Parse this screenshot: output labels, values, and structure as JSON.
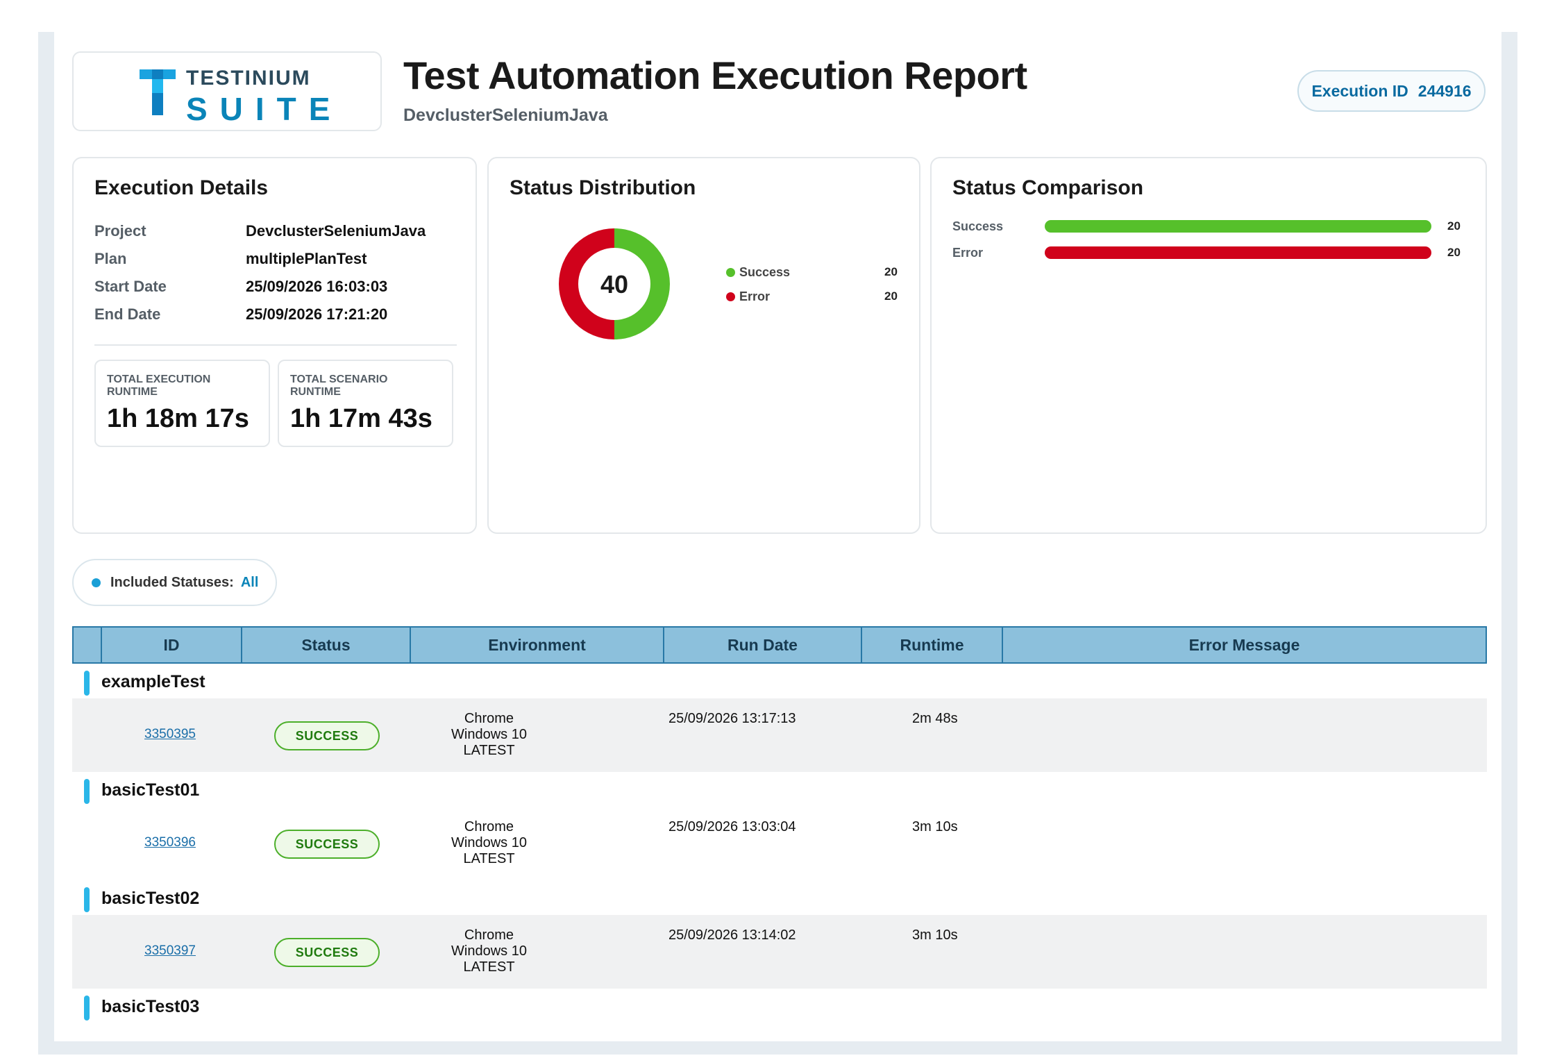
{
  "header": {
    "logo_line1": "TESTINIUM",
    "logo_line2": "SUITE",
    "title": "Test Automation Execution Report",
    "subtitle": "DevclusterSeleniumJava",
    "execution_id_label": "Execution ID",
    "execution_id_value": "244916"
  },
  "execution_details": {
    "title": "Execution Details",
    "rows": [
      {
        "label": "Project",
        "value": "DevclusterSeleniumJava"
      },
      {
        "label": "Plan",
        "value": "multiplePlanTest"
      },
      {
        "label": "Start Date",
        "value": "25/09/2026 16:03:03"
      },
      {
        "label": "End Date",
        "value": "25/09/2026 17:21:20"
      }
    ],
    "total_execution_label": "TOTAL EXECUTION RUNTIME",
    "total_execution_value": "1h 18m 17s",
    "total_scenario_label": "TOTAL SCENARIO RUNTIME",
    "total_scenario_value": "1h 17m 43s"
  },
  "status_distribution": {
    "title": "Status Distribution",
    "total": "40",
    "legend": [
      {
        "label": "Success",
        "value": "20",
        "color": "#56c02b"
      },
      {
        "label": "Error",
        "value": "20",
        "color": "#d0021b"
      }
    ]
  },
  "status_comparison": {
    "title": "Status Comparison",
    "bars": [
      {
        "label": "Success",
        "value": "20",
        "fraction": 1.0,
        "color": "#56c02b"
      },
      {
        "label": "Error",
        "value": "20",
        "fraction": 1.0,
        "color": "#d0021b"
      }
    ]
  },
  "filter": {
    "label": "Included Statuses:",
    "value": "All"
  },
  "table": {
    "columns": [
      "",
      "ID",
      "Status",
      "Environment",
      "Run Date",
      "Runtime",
      "Error Message"
    ],
    "groups": [
      {
        "name": "exampleTest",
        "id": "3350395",
        "status": "SUCCESS",
        "env_browser": "Chrome",
        "env_os": "Windows 10",
        "env_version": "LATEST",
        "run_date": "25/09/2026 13:17:13",
        "runtime": "2m 48s",
        "error": ""
      },
      {
        "name": "basicTest01",
        "id": "3350396",
        "status": "SUCCESS",
        "env_browser": "Chrome",
        "env_os": "Windows 10",
        "env_version": "LATEST",
        "run_date": "25/09/2026 13:03:04",
        "runtime": "3m 10s",
        "error": ""
      },
      {
        "name": "basicTest02",
        "id": "3350397",
        "status": "SUCCESS",
        "env_browser": "Chrome",
        "env_os": "Windows 10",
        "env_version": "LATEST",
        "run_date": "25/09/2026 13:14:02",
        "runtime": "3m 10s",
        "error": ""
      },
      {
        "name": "basicTest03"
      }
    ]
  }
}
